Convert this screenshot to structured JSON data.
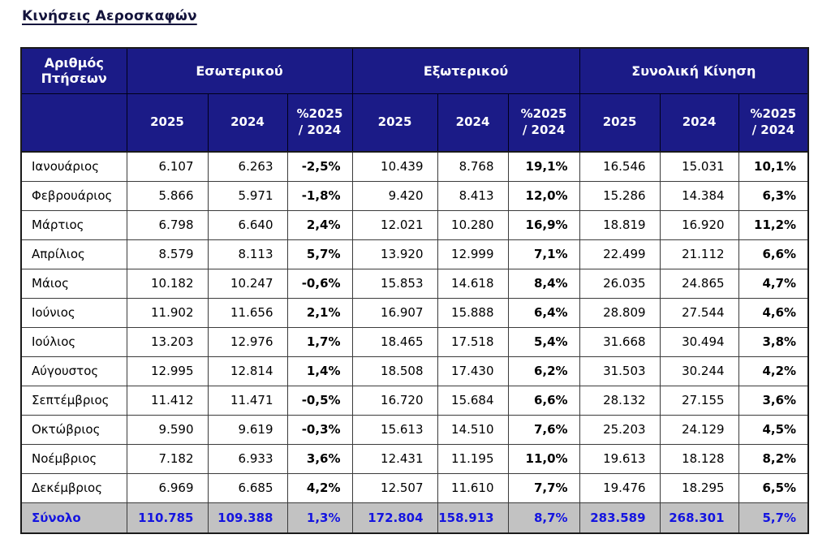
{
  "page_title": "Κινήσεις Αεροσκαφών",
  "colors": {
    "header_bg": "#1B1B87",
    "header_text": "#FFFFFF",
    "total_bg": "#C2C2C2",
    "total_text": "#1414E0",
    "title_text": "#14143C"
  },
  "table": {
    "corner_header": "Αριθμός Πτήσεων",
    "groups": [
      {
        "label": "Εσωτερικού"
      },
      {
        "label": "Εξωτερικού"
      },
      {
        "label": "Συνολική Κίνηση"
      }
    ],
    "sub_headers": [
      "2025",
      "2024",
      "%2025\n/ 2024"
    ],
    "rows": [
      {
        "label": "Ιανουάριος",
        "values": [
          "6.107",
          "6.263",
          "-2,5%",
          "10.439",
          "8.768",
          "19,1%",
          "16.546",
          "15.031",
          "10,1%"
        ]
      },
      {
        "label": "Φεβρουάριος",
        "values": [
          "5.866",
          "5.971",
          "-1,8%",
          "9.420",
          "8.413",
          "12,0%",
          "15.286",
          "14.384",
          "6,3%"
        ]
      },
      {
        "label": "Μάρτιος",
        "values": [
          "6.798",
          "6.640",
          "2,4%",
          "12.021",
          "10.280",
          "16,9%",
          "18.819",
          "16.920",
          "11,2%"
        ]
      },
      {
        "label": "Απρίλιος",
        "values": [
          "8.579",
          "8.113",
          "5,7%",
          "13.920",
          "12.999",
          "7,1%",
          "22.499",
          "21.112",
          "6,6%"
        ]
      },
      {
        "label": "Μάιος",
        "values": [
          "10.182",
          "10.247",
          "-0,6%",
          "15.853",
          "14.618",
          "8,4%",
          "26.035",
          "24.865",
          "4,7%"
        ]
      },
      {
        "label": "Ιούνιος",
        "values": [
          "11.902",
          "11.656",
          "2,1%",
          "16.907",
          "15.888",
          "6,4%",
          "28.809",
          "27.544",
          "4,6%"
        ]
      },
      {
        "label": "Ιούλιος",
        "values": [
          "13.203",
          "12.976",
          "1,7%",
          "18.465",
          "17.518",
          "5,4%",
          "31.668",
          "30.494",
          "3,8%"
        ]
      },
      {
        "label": "Αύγουστος",
        "values": [
          "12.995",
          "12.814",
          "1,4%",
          "18.508",
          "17.430",
          "6,2%",
          "31.503",
          "30.244",
          "4,2%"
        ]
      },
      {
        "label": "Σεπτέμβριος",
        "values": [
          "11.412",
          "11.471",
          "-0,5%",
          "16.720",
          "15.684",
          "6,6%",
          "28.132",
          "27.155",
          "3,6%"
        ]
      },
      {
        "label": "Οκτώβριος",
        "values": [
          "9.590",
          "9.619",
          "-0,3%",
          "15.613",
          "14.510",
          "7,6%",
          "25.203",
          "24.129",
          "4,5%"
        ]
      },
      {
        "label": "Νοέμβριος",
        "values": [
          "7.182",
          "6.933",
          "3,6%",
          "12.431",
          "11.195",
          "11,0%",
          "19.613",
          "18.128",
          "8,2%"
        ]
      },
      {
        "label": "Δεκέμβριος",
        "values": [
          "6.969",
          "6.685",
          "4,2%",
          "12.507",
          "11.610",
          "7,7%",
          "19.476",
          "18.295",
          "6,5%"
        ]
      }
    ],
    "total": {
      "label": "Σύνολο",
      "values": [
        "110.785",
        "109.388",
        "1,3%",
        "172.804",
        "158.913",
        "8,7%",
        "283.589",
        "268.301",
        "5,7%"
      ]
    }
  }
}
